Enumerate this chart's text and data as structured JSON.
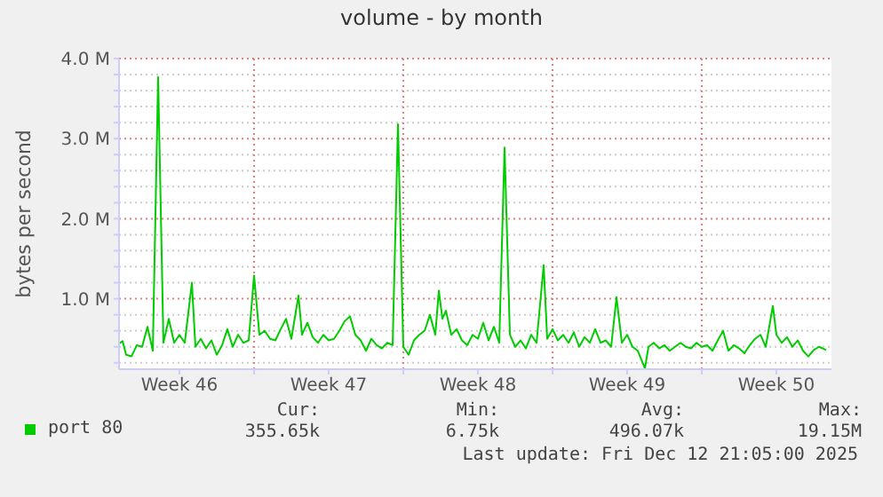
{
  "chart_data": {
    "type": "line",
    "title": "volume - by month",
    "ylabel": "bytes per second",
    "xlim": [
      "2025-11-10T16:00",
      "2025-12-14T02:00"
    ],
    "xticks": [
      {
        "value": "2025-11-13T12:00",
        "label": "Week 46"
      },
      {
        "value": "2025-11-17T00:00",
        "label": null
      },
      {
        "value": "2025-11-20T12:00",
        "label": "Week 47"
      },
      {
        "value": "2025-11-24T00:00",
        "label": null
      },
      {
        "value": "2025-11-27T12:00",
        "label": "Week 48"
      },
      {
        "value": "2025-12-01T00:00",
        "label": null
      },
      {
        "value": "2025-12-04T12:00",
        "label": "Week 49"
      },
      {
        "value": "2025-12-08T00:00",
        "label": null
      },
      {
        "value": "2025-12-11T12:00",
        "label": "Week 50"
      }
    ],
    "ylim": [
      0.12,
      4
    ],
    "yticks": [
      {
        "value": 0.2,
        "label": null
      },
      {
        "value": 0.4,
        "label": null
      },
      {
        "value": 0.6,
        "label": null
      },
      {
        "value": 0.8,
        "label": null
      },
      {
        "value": 1,
        "label": "1.0 M"
      },
      {
        "value": 1.2,
        "label": null
      },
      {
        "value": 1.4,
        "label": null
      },
      {
        "value": 1.6,
        "label": null
      },
      {
        "value": 1.8,
        "label": null
      },
      {
        "value": 2,
        "label": "2.0 M"
      },
      {
        "value": 2.2,
        "label": null
      },
      {
        "value": 2.4,
        "label": null
      },
      {
        "value": 2.6,
        "label": null
      },
      {
        "value": 2.8,
        "label": null
      },
      {
        "value": 3,
        "label": "3.0 M"
      },
      {
        "value": 3.2,
        "label": null
      },
      {
        "value": 3.4,
        "label": null
      },
      {
        "value": 3.6,
        "label": null
      },
      {
        "value": 3.8,
        "label": null
      },
      {
        "value": 4,
        "label": "4.0 M"
      }
    ],
    "grid": true,
    "legend": "bottom left",
    "marker": "none",
    "line_style": "solid",
    "x": [
      "2025-11-10T16:00",
      "2025-11-10T20:00",
      "2025-11-11T00:00",
      "2025-11-11T06:00",
      "2025-11-11T12:00",
      "2025-11-11T18:00",
      "2025-11-12T00:00",
      "2025-11-12T06:00",
      "2025-11-12T12:00",
      "2025-11-12T18:00",
      "2025-11-13T00:00",
      "2025-11-13T06:00",
      "2025-11-13T12:00",
      "2025-11-13T18:00",
      "2025-11-14T02:00",
      "2025-11-14T06:00",
      "2025-11-14T12:00",
      "2025-11-14T18:00",
      "2025-11-15T00:00",
      "2025-11-15T06:00",
      "2025-11-15T12:00",
      "2025-11-15T18:00",
      "2025-11-16T00:00",
      "2025-11-16T06:00",
      "2025-11-16T12:00",
      "2025-11-16T18:00",
      "2025-11-17T00:00",
      "2025-11-17T06:00",
      "2025-11-17T12:00",
      "2025-11-17T18:00",
      "2025-11-18T00:00",
      "2025-11-18T06:00",
      "2025-11-18T12:00",
      "2025-11-18T18:00",
      "2025-11-19T02:00",
      "2025-11-19T06:00",
      "2025-11-19T12:00",
      "2025-11-19T18:00",
      "2025-11-20T00:00",
      "2025-11-20T06:00",
      "2025-11-20T12:00",
      "2025-11-20T18:00",
      "2025-11-21T00:00",
      "2025-11-21T06:00",
      "2025-11-21T12:00",
      "2025-11-21T18:00",
      "2025-11-22T00:00",
      "2025-11-22T06:00",
      "2025-11-22T12:00",
      "2025-11-22T18:00",
      "2025-11-23T00:00",
      "2025-11-23T06:00",
      "2025-11-23T12:00",
      "2025-11-23T18:00",
      "2025-11-24T00:00",
      "2025-11-24T06:00",
      "2025-11-24T12:00",
      "2025-11-24T18:00",
      "2025-11-25T00:00",
      "2025-11-25T06:00",
      "2025-11-25T12:00",
      "2025-11-25T16:00",
      "2025-11-25T20:00",
      "2025-11-26T00:00",
      "2025-11-26T06:00",
      "2025-11-26T12:00",
      "2025-11-26T18:00",
      "2025-11-27T00:00",
      "2025-11-27T06:00",
      "2025-11-27T12:00",
      "2025-11-27T18:00",
      "2025-11-28T00:00",
      "2025-11-28T06:00",
      "2025-11-28T12:00",
      "2025-11-28T18:00",
      "2025-11-29T00:00",
      "2025-11-29T06:00",
      "2025-11-29T12:00",
      "2025-11-29T18:00",
      "2025-11-30T00:00",
      "2025-11-30T06:00",
      "2025-11-30T14:00",
      "2025-11-30T18:00",
      "2025-12-01T00:00",
      "2025-12-01T06:00",
      "2025-12-01T12:00",
      "2025-12-01T18:00",
      "2025-12-02T00:00",
      "2025-12-02T06:00",
      "2025-12-02T12:00",
      "2025-12-02T18:00",
      "2025-12-03T00:00",
      "2025-12-03T06:00",
      "2025-12-03T12:00",
      "2025-12-03T18:00",
      "2025-12-04T00:00",
      "2025-12-04T06:00",
      "2025-12-04T12:00",
      "2025-12-04T18:00",
      "2025-12-05T00:00",
      "2025-12-05T08:00",
      "2025-12-05T12:00",
      "2025-12-05T18:00",
      "2025-12-06T00:00",
      "2025-12-06T06:00",
      "2025-12-06T12:00",
      "2025-12-06T18:00",
      "2025-12-07T00:00",
      "2025-12-07T06:00",
      "2025-12-07T12:00",
      "2025-12-07T18:00",
      "2025-12-08T00:00",
      "2025-12-08T06:00",
      "2025-12-08T12:00",
      "2025-12-08T18:00",
      "2025-12-09T00:00",
      "2025-12-09T06:00",
      "2025-12-09T12:00",
      "2025-12-09T18:00",
      "2025-12-10T00:00",
      "2025-12-10T06:00",
      "2025-12-10T12:00",
      "2025-12-10T18:00",
      "2025-12-11T00:00",
      "2025-12-11T08:00",
      "2025-12-11T12:00",
      "2025-12-11T18:00",
      "2025-12-12T00:00",
      "2025-12-12T06:00",
      "2025-12-12T12:00",
      "2025-12-12T18:00",
      "2025-12-13T00:00",
      "2025-12-13T06:00",
      "2025-12-13T12:00",
      "2025-12-13T20:00"
    ],
    "series": [
      {
        "name": "port 80",
        "color": "#00cc00",
        "values": [
          0.44,
          0.47,
          0.3,
          0.28,
          0.42,
          0.4,
          0.65,
          0.35,
          3.77,
          0.45,
          0.75,
          0.45,
          0.55,
          0.45,
          1.2,
          0.4,
          0.5,
          0.38,
          0.48,
          0.3,
          0.42,
          0.62,
          0.4,
          0.55,
          0.45,
          0.48,
          1.29,
          0.55,
          0.6,
          0.5,
          0.48,
          0.62,
          0.75,
          0.5,
          1.04,
          0.55,
          0.7,
          0.52,
          0.45,
          0.55,
          0.48,
          0.5,
          0.6,
          0.72,
          0.78,
          0.55,
          0.48,
          0.35,
          0.5,
          0.42,
          0.38,
          0.45,
          0.42,
          3.18,
          0.4,
          0.3,
          0.48,
          0.55,
          0.6,
          0.8,
          0.55,
          1.1,
          0.75,
          0.85,
          0.55,
          0.62,
          0.48,
          0.42,
          0.55,
          0.5,
          0.7,
          0.48,
          0.65,
          0.45,
          2.89,
          0.55,
          0.4,
          0.48,
          0.38,
          0.55,
          0.45,
          1.42,
          0.5,
          0.62,
          0.48,
          0.55,
          0.45,
          0.58,
          0.4,
          0.52,
          0.45,
          0.62,
          0.45,
          0.48,
          0.4,
          1.02,
          0.45,
          0.55,
          0.4,
          0.35,
          0.13,
          0.4,
          0.45,
          0.38,
          0.42,
          0.35,
          0.4,
          0.45,
          0.4,
          0.38,
          0.45,
          0.4,
          0.42,
          0.35,
          0.48,
          0.6,
          0.35,
          0.42,
          0.38,
          0.32,
          0.42,
          0.5,
          0.55,
          0.4,
          0.91,
          0.55,
          0.45,
          0.52,
          0.4,
          0.48,
          0.35,
          0.28,
          0.36,
          0.4,
          0.36
        ]
      }
    ],
    "annotations": [
      "Cur:",
      "355.65k",
      "Min:",
      "6.75k",
      "Avg:",
      "496.07k",
      "Max:",
      "19.15M",
      "Last update: Fri Dec 12 21:05:00 2025"
    ]
  }
}
